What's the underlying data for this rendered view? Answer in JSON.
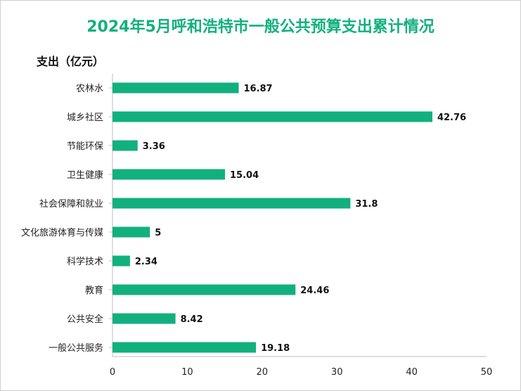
{
  "title": "2024年5月呼和浩特市一般公共预算支出累计情况",
  "chart_data": {
    "type": "bar",
    "orientation": "horizontal",
    "title": "2024年5月呼和浩特市一般公共预算支出累计情况",
    "ylabel": "支出（亿元）",
    "xlabel": "",
    "categories": [
      "农林水",
      "城乡社区",
      "节能环保",
      "卫生健康",
      "社会保障和就业",
      "文化旅游体育与传媒",
      "科学技术",
      "教育",
      "公共安全",
      "一般公共服务"
    ],
    "values": [
      16.87,
      42.76,
      3.36,
      15.04,
      31.8,
      5,
      2.34,
      24.46,
      8.42,
      19.18
    ],
    "value_labels": [
      "16.87",
      "42.76",
      "3.36",
      "15.04",
      "31.8",
      "5",
      "2.34",
      "24.46",
      "8.42",
      "19.18"
    ],
    "xlim": [
      0,
      50
    ],
    "xticks": [
      0,
      10,
      20,
      30,
      40,
      50
    ],
    "grid": false,
    "bar_color": "#12b07f"
  }
}
